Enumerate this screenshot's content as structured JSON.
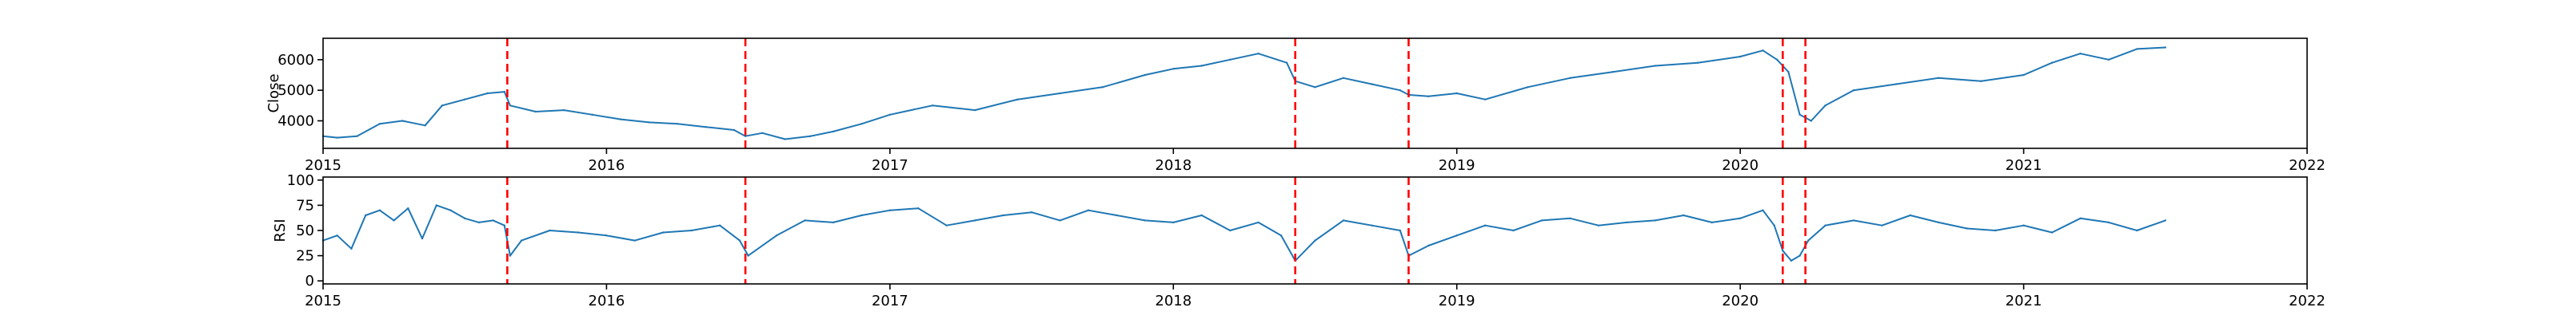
{
  "colors": {
    "series": "#1f77b4",
    "events": "#ff0000"
  },
  "chart_data": [
    {
      "type": "line",
      "title": "",
      "xlabel": "",
      "ylabel": "Close",
      "xlim": [
        2015.0,
        2022.0
      ],
      "ylim": [
        3100,
        6700
      ],
      "x_ticks": [
        "2015",
        "2016",
        "2017",
        "2018",
        "2019",
        "2020",
        "2021",
        "2022"
      ],
      "y_ticks": [
        "4000",
        "5000",
        "6000"
      ],
      "grid": false,
      "event_lines_x": [
        2015.65,
        2016.49,
        2018.43,
        2018.83,
        2020.15,
        2020.23
      ],
      "series": [
        {
          "x": [
            2015.0,
            2015.05,
            2015.12,
            2015.2,
            2015.28,
            2015.36,
            2015.42,
            2015.5,
            2015.58,
            2015.64,
            2015.66,
            2015.75,
            2015.85,
            2015.95,
            2016.05,
            2016.15,
            2016.25,
            2016.35,
            2016.45,
            2016.49,
            2016.55,
            2016.63,
            2016.72,
            2016.8,
            2016.9,
            2017.0,
            2017.15,
            2017.3,
            2017.45,
            2017.6,
            2017.75,
            2017.9,
            2018.0,
            2018.1,
            2018.2,
            2018.3,
            2018.4,
            2018.43,
            2018.5,
            2018.6,
            2018.7,
            2018.8,
            2018.83,
            2018.9,
            2019.0,
            2019.1,
            2019.25,
            2019.4,
            2019.55,
            2019.7,
            2019.85,
            2020.0,
            2020.08,
            2020.13,
            2020.17,
            2020.21,
            2020.25,
            2020.3,
            2020.4,
            2020.55,
            2020.7,
            2020.85,
            2021.0,
            2021.1,
            2021.2,
            2021.3,
            2021.4,
            2021.5
          ],
          "y": [
            3500,
            3450,
            3500,
            3900,
            4000,
            3850,
            4500,
            4700,
            4900,
            4950,
            4500,
            4300,
            4350,
            4200,
            4050,
            3950,
            3900,
            3800,
            3700,
            3500,
            3600,
            3400,
            3500,
            3650,
            3900,
            4200,
            4500,
            4350,
            4700,
            4900,
            5100,
            5500,
            5700,
            5800,
            6000,
            6200,
            5900,
            5300,
            5100,
            5400,
            5200,
            5000,
            4850,
            4800,
            4900,
            4700,
            5100,
            5400,
            5600,
            5800,
            5900,
            6100,
            6300,
            6000,
            5600,
            4200,
            4000,
            4500,
            5000,
            5200,
            5400,
            5300,
            5500,
            5900,
            6200,
            6000,
            6350,
            6400
          ],
          "labels": [
            "2015-01",
            "2015-01",
            "2015-02",
            "2015-03",
            "2015-04",
            "2015-05",
            "2015-06",
            "2015-07",
            "2015-08",
            "2015-08",
            "2015-09",
            "2015-10",
            "2015-11",
            "2015-12",
            "2016-01",
            "2016-02",
            "2016-04",
            "2016-05",
            "2016-06",
            "2016-07",
            "2016-07",
            "2016-08",
            "2016-09",
            "2016-10",
            "2016-12",
            "2017-01",
            "2017-02",
            "2017-04",
            "2017-06",
            "2017-08",
            "2017-10",
            "2017-12",
            "2018-01",
            "2018-02",
            "2018-03",
            "2018-04",
            "2018-05",
            "2018-06",
            "2018-07",
            "2018-08",
            "2018-09",
            "2018-10",
            "2018-11",
            "2018-12",
            "2019-01",
            "2019-02",
            "2019-04",
            "2019-06",
            "2019-07",
            "2019-09",
            "2019-11",
            "2020-01",
            "2020-02",
            "2020-02",
            "2020-03",
            "2020-03",
            "2020-04",
            "2020-04",
            "2020-06",
            "2020-07",
            "2020-09",
            "2020-11",
            "2021-01",
            "2021-02",
            "2021-03",
            "2021-04",
            "2021-06",
            "2021-07"
          ]
        }
      ]
    },
    {
      "type": "line",
      "title": "",
      "xlabel": "",
      "ylabel": "RSI",
      "xlim": [
        2015.0,
        2022.0
      ],
      "ylim": [
        -3,
        103
      ],
      "x_ticks": [
        "2015",
        "2016",
        "2017",
        "2018",
        "2019",
        "2020",
        "2021",
        "2022"
      ],
      "y_ticks": [
        "0",
        "25",
        "50",
        "75",
        "100"
      ],
      "grid": false,
      "event_lines_x": [
        2015.65,
        2016.49,
        2018.43,
        2018.83,
        2020.15,
        2020.23
      ],
      "series": [
        {
          "x": [
            2015.0,
            2015.05,
            2015.1,
            2015.15,
            2015.2,
            2015.25,
            2015.3,
            2015.35,
            2015.4,
            2015.45,
            2015.5,
            2015.55,
            2015.6,
            2015.64,
            2015.66,
            2015.7,
            2015.8,
            2015.9,
            2016.0,
            2016.1,
            2016.2,
            2016.3,
            2016.4,
            2016.47,
            2016.5,
            2016.6,
            2016.7,
            2016.8,
            2016.9,
            2017.0,
            2017.1,
            2017.2,
            2017.3,
            2017.4,
            2017.5,
            2017.6,
            2017.7,
            2017.8,
            2017.9,
            2018.0,
            2018.1,
            2018.2,
            2018.3,
            2018.38,
            2018.43,
            2018.5,
            2018.6,
            2018.7,
            2018.8,
            2018.83,
            2018.9,
            2019.0,
            2019.1,
            2019.2,
            2019.3,
            2019.4,
            2019.5,
            2019.6,
            2019.7,
            2019.8,
            2019.9,
            2020.0,
            2020.08,
            2020.12,
            2020.15,
            2020.18,
            2020.21,
            2020.24,
            2020.3,
            2020.4,
            2020.5,
            2020.6,
            2020.7,
            2020.8,
            2020.9,
            2021.0,
            2021.1,
            2021.2,
            2021.3,
            2021.4,
            2021.5
          ],
          "y": [
            40,
            45,
            32,
            65,
            70,
            60,
            72,
            42,
            75,
            70,
            62,
            58,
            60,
            55,
            25,
            40,
            50,
            48,
            45,
            40,
            48,
            50,
            55,
            40,
            25,
            45,
            60,
            58,
            65,
            70,
            72,
            55,
            60,
            65,
            68,
            60,
            70,
            65,
            60,
            58,
            65,
            50,
            58,
            45,
            20,
            40,
            60,
            55,
            50,
            25,
            35,
            45,
            55,
            50,
            60,
            62,
            55,
            58,
            60,
            65,
            58,
            62,
            70,
            55,
            30,
            20,
            25,
            40,
            55,
            60,
            55,
            65,
            58,
            52,
            50,
            55,
            48,
            62,
            58,
            50,
            60
          ],
          "labels": [
            "2015-01",
            "2015-01",
            "2015-02",
            "2015-02",
            "2015-03",
            "2015-04",
            "2015-04",
            "2015-05",
            "2015-06",
            "2015-06",
            "2015-07",
            "2015-08",
            "2015-08",
            "2015-08",
            "2015-09",
            "2015-10",
            "2015-11",
            "2015-12",
            "2016-01",
            "2016-02",
            "2016-03",
            "2016-04",
            "2016-06",
            "2016-07",
            "2016-07",
            "2016-08",
            "2016-09",
            "2016-10",
            "2016-12",
            "2017-01",
            "2017-02",
            "2017-03",
            "2017-04",
            "2017-06",
            "2017-07",
            "2017-08",
            "2017-09",
            "2017-11",
            "2017-12",
            "2018-01",
            "2018-02",
            "2018-03",
            "2018-04",
            "2018-05",
            "2018-06",
            "2018-07",
            "2018-08",
            "2018-09",
            "2018-11",
            "2018-11",
            "2018-12",
            "2019-01",
            "2019-02",
            "2019-03",
            "2019-04",
            "2019-06",
            "2019-07",
            "2019-08",
            "2019-09",
            "2019-11",
            "2019-12",
            "2020-01",
            "2020-02",
            "2020-02",
            "2020-03",
            "2020-03",
            "2020-03",
            "2020-04",
            "2020-04",
            "2020-06",
            "2020-07",
            "2020-08",
            "2020-09",
            "2020-11",
            "2020-12",
            "2021-01",
            "2021-02",
            "2021-03",
            "2021-04",
            "2021-06",
            "2021-07"
          ]
        }
      ]
    }
  ]
}
